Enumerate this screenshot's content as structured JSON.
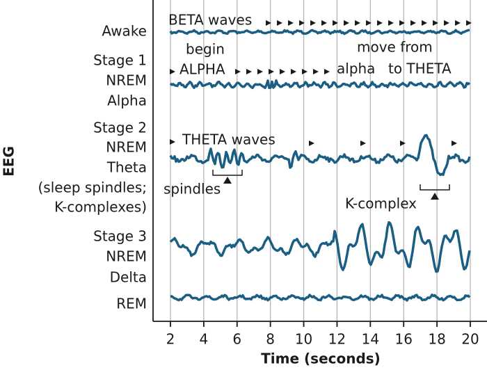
{
  "axis": {
    "title": "Time (seconds)",
    "ylabel": "EEG",
    "xlim": [
      2,
      20
    ],
    "xticks": [
      2,
      4,
      6,
      8,
      10,
      12,
      14,
      16,
      18,
      20
    ]
  },
  "rows": [
    {
      "lines": [
        "Awake"
      ]
    },
    {
      "lines": [
        "Stage 1",
        "NREM",
        "Alpha"
      ]
    },
    {
      "lines": [
        "Stage 2",
        "NREM",
        "Theta",
        "(sleep spindles;",
        "K-complexes)"
      ]
    },
    {
      "lines": [
        "Stage 3",
        "NREM",
        "Delta"
      ]
    },
    {
      "lines": [
        "REM"
      ]
    }
  ],
  "annotations": [
    "BETA waves",
    "begin",
    "ALPHA",
    "move from",
    "alpha",
    "to THETA",
    "THETA waves",
    "spindles",
    "K-complex"
  ]
}
